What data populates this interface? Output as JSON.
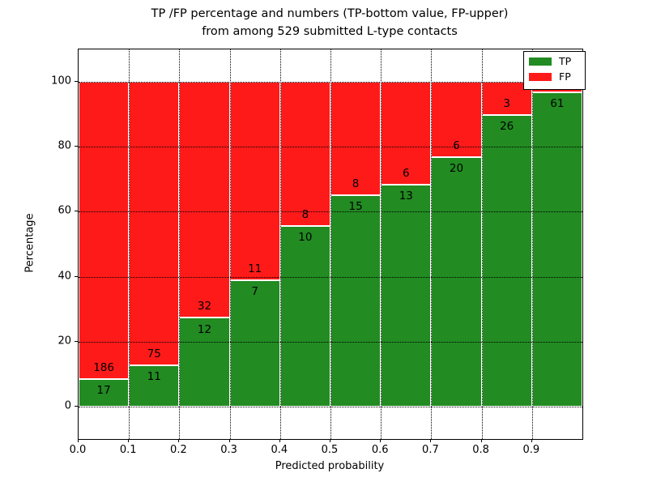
{
  "chart_data": {
    "type": "bar",
    "stacked": true,
    "normalized_to_percent": true,
    "title_line1": "TP /FP percentage and numbers (TP-bottom value, FP-upper)",
    "title_line2": "from among 529 submitted L-type contacts",
    "xlabel": "Predicted probability",
    "ylabel": "Percentage",
    "xlim": [
      0.0,
      1.0
    ],
    "ylim": [
      -10,
      110
    ],
    "grid": true,
    "x_tick_labels": [
      "0.0",
      "0.1",
      "0.2",
      "0.3",
      "0.4",
      "0.5",
      "0.6",
      "0.7",
      "0.8",
      "0.9"
    ],
    "y_tick_values": [
      0,
      20,
      40,
      60,
      80,
      100
    ],
    "y_tick_labels": [
      "0",
      "20",
      "40",
      "60",
      "80",
      "100"
    ],
    "categories": [
      "0.0-0.1",
      "0.1-0.2",
      "0.2-0.3",
      "0.3-0.4",
      "0.4-0.5",
      "0.5-0.6",
      "0.6-0.7",
      "0.7-0.8",
      "0.8-0.9",
      "0.9-1.0"
    ],
    "series": [
      {
        "name": "TP",
        "color": "#228b22",
        "counts": [
          17,
          11,
          12,
          7,
          10,
          15,
          13,
          20,
          26,
          61
        ]
      },
      {
        "name": "FP",
        "color": "#ff1a1a",
        "counts": [
          186,
          75,
          32,
          11,
          8,
          8,
          6,
          6,
          3,
          null
        ]
      }
    ],
    "tp_percent_tops": [
      8.4,
      12.8,
      27.3,
      38.9,
      55.6,
      65.2,
      68.4,
      76.9,
      89.7,
      96.8
    ],
    "bar_labels_tp": [
      "17",
      "11",
      "12",
      "7",
      "10",
      "15",
      "13",
      "20",
      "26",
      "61"
    ],
    "bar_labels_fp": [
      "186",
      "75",
      "32",
      "11",
      "8",
      "8",
      "6",
      "6",
      "3",
      ""
    ],
    "legend_position": "upper right"
  },
  "legend": {
    "items": [
      {
        "label": "TP",
        "color": "#228b22"
      },
      {
        "label": "FP",
        "color": "#ff1a1a"
      }
    ]
  }
}
